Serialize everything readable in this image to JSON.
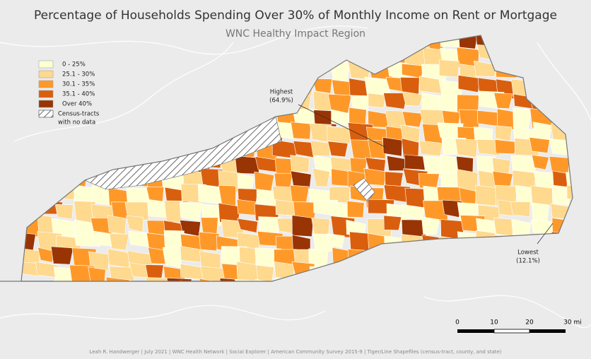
{
  "header": {
    "title": "Percentage of Households Spending Over 30% of Monthly Income on Rent or Mortgage",
    "subtitle": "WNC Healthy Impact Region"
  },
  "legend": {
    "items": [
      {
        "label": "0 - 25%",
        "color": "#ffffd4"
      },
      {
        "label": "25.1 - 30%",
        "color": "#fed98e"
      },
      {
        "label": "30.1 - 35%",
        "color": "#fe9929"
      },
      {
        "label": "35.1 - 40%",
        "color": "#d95f0e"
      },
      {
        "label": "Over 40%",
        "color": "#993404"
      }
    ],
    "no_data": [
      "Census-tracts",
      "with no data"
    ]
  },
  "annotations": [
    {
      "label": "Highest",
      "value": "(64.9%)"
    },
    {
      "label": "Lowest",
      "value": "(12.1%)"
    }
  ],
  "scale_bar": {
    "labels": [
      "0",
      "10",
      "20",
      "30 mi"
    ]
  },
  "credits": "Leah R. Handwerger | July 2021 | WNC Health Network | Social Explorer | American Community Survey 2015-9 | Tiger/Line Shapefiles (census-tract, county, and state)"
}
